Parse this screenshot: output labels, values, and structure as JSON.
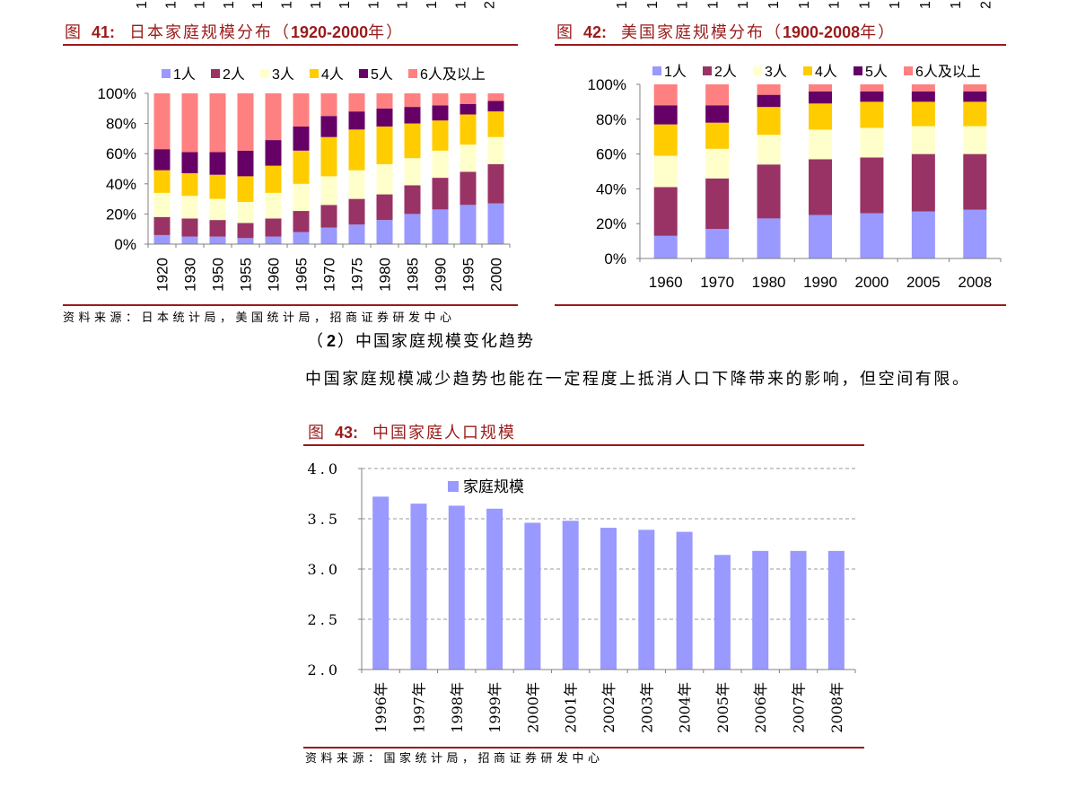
{
  "colors": {
    "accent": "#9B1B1B",
    "axis": "#808080",
    "grid": "#9A9A9A",
    "text": "#000000"
  },
  "cut_off_labels": {
    "left": [
      "1",
      "1",
      "1",
      "1",
      "1",
      "1",
      "1",
      "1",
      "1",
      "1",
      "1",
      "1",
      "2"
    ],
    "right": [
      "1",
      "1",
      "1",
      "1",
      "1",
      "1",
      "1",
      "1",
      "1",
      "1",
      "1",
      "1",
      "2"
    ]
  },
  "source_note_1": "资料来源：日本统计局，美国统计局，招商证券研发中心",
  "section_heading": {
    "open": "（",
    "number": "2",
    "close": "）",
    "title": "中国家庭规模变化趋势"
  },
  "paragraph": "中国家庭规模减少趋势也能在一定程度上抵消人口下降带来的影响，但空间有限。",
  "source_note_2": "资料来源：国家统计局，招商证券研发中心",
  "chart_data": [
    {
      "type": "bar",
      "stacked": true,
      "caption": {
        "fig": "图",
        "num": "41:",
        "title": "日本家庭规模分布（",
        "years": "1920-2000",
        "end": "年）"
      },
      "categories": [
        "1920",
        "1930",
        "1950",
        "1955",
        "1960",
        "1965",
        "1970",
        "1975",
        "1980",
        "1985",
        "1990",
        "1995",
        "2000"
      ],
      "series": [
        {
          "name": "1人",
          "color": "#9999FF",
          "values": [
            6,
            5,
            5,
            4,
            5,
            8,
            11,
            13,
            16,
            20,
            23,
            26,
            27
          ]
        },
        {
          "name": "2人",
          "color": "#993366",
          "values": [
            12,
            12,
            11,
            10,
            12,
            14,
            15,
            17,
            17,
            19,
            21,
            22,
            26
          ]
        },
        {
          "name": "3人",
          "color": "#FFFFCC",
          "values": [
            16,
            15,
            14,
            14,
            17,
            18,
            19,
            19,
            20,
            18,
            18,
            18,
            18
          ]
        },
        {
          "name": "4人",
          "color": "#FFCC00",
          "values": [
            15,
            15,
            16,
            17,
            18,
            22,
            26,
            27,
            25,
            23,
            20,
            20,
            17
          ]
        },
        {
          "name": "5人",
          "color": "#660066",
          "values": [
            14,
            14,
            15,
            17,
            17,
            16,
            14,
            12,
            12,
            11,
            10,
            7,
            7
          ]
        },
        {
          "name": "6人及以上",
          "color": "#FF8080",
          "values": [
            37,
            39,
            39,
            38,
            31,
            22,
            15,
            12,
            10,
            9,
            8,
            7,
            5
          ]
        }
      ],
      "y_ticks": [
        "100%",
        "80%",
        "60%",
        "40%",
        "20%",
        "0%"
      ],
      "ylim": [
        0,
        100
      ],
      "legend": "top",
      "grid": false
    },
    {
      "type": "bar",
      "stacked": true,
      "caption": {
        "fig": "图",
        "num": "42:",
        "title": "美国家庭规模分布（",
        "years": "1900-2008",
        "end": "年）"
      },
      "categories": [
        "1960",
        "1970",
        "1980",
        "1990",
        "2000",
        "2005",
        "2008"
      ],
      "series": [
        {
          "name": "1人",
          "color": "#9999FF",
          "values": [
            13,
            17,
            23,
            25,
            26,
            27,
            28
          ]
        },
        {
          "name": "2人",
          "color": "#993366",
          "values": [
            28,
            29,
            31,
            32,
            32,
            33,
            32
          ]
        },
        {
          "name": "3人",
          "color": "#FFFFCC",
          "values": [
            18,
            17,
            17,
            17,
            17,
            16,
            16
          ]
        },
        {
          "name": "4人",
          "color": "#FFCC00",
          "values": [
            18,
            15,
            16,
            15,
            15,
            14,
            14
          ]
        },
        {
          "name": "5人",
          "color": "#660066",
          "values": [
            11,
            10,
            7,
            7,
            6,
            6,
            6
          ]
        },
        {
          "name": "6人及以上",
          "color": "#FF8080",
          "values": [
            12,
            12,
            6,
            4,
            4,
            4,
            4
          ]
        }
      ],
      "y_ticks": [
        "100%",
        "80%",
        "60%",
        "40%",
        "20%",
        "0%"
      ],
      "ylim": [
        0,
        100
      ],
      "legend": "top",
      "grid": false
    },
    {
      "type": "bar",
      "stacked": false,
      "caption": {
        "fig": "图",
        "num": "43:",
        "title": "中国家庭人口规模"
      },
      "categories": [
        "1996年",
        "1997年",
        "1998年",
        "1999年",
        "2000年",
        "2001年",
        "2002年",
        "2003年",
        "2004年",
        "2005年",
        "2006年",
        "2007年",
        "2008年"
      ],
      "series": [
        {
          "name": "家庭规模",
          "color": "#9999FF",
          "values": [
            3.72,
            3.65,
            3.63,
            3.6,
            3.46,
            3.48,
            3.41,
            3.39,
            3.37,
            3.14,
            3.18,
            3.18,
            3.18
          ]
        }
      ],
      "y_ticks": [
        "4.0",
        "3.5",
        "3.0",
        "2.5",
        "2.0"
      ],
      "ylim": [
        2.0,
        4.0
      ],
      "legend": "top-left",
      "grid": true
    }
  ]
}
